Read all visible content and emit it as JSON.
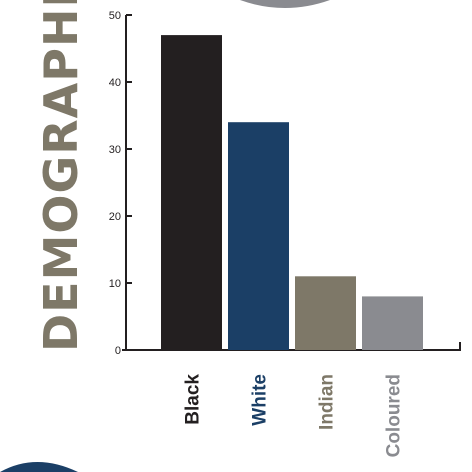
{
  "chart_data": {
    "type": "bar",
    "title": "DEMOGRAPHICS",
    "xlabel": "",
    "ylabel": "",
    "categories": [
      "Black",
      "White",
      "Indian",
      "Coloured"
    ],
    "values": [
      47,
      34,
      11,
      8
    ],
    "ylim": [
      0,
      50
    ],
    "yticks": [
      "0",
      "10",
      "20",
      "30",
      "40",
      "50"
    ],
    "grid": false,
    "legend": "none"
  },
  "colors": {
    "bars": [
      "#231f20",
      "#1b3f66",
      "#7e7868",
      "#8a8b90"
    ],
    "labels": [
      "#231f20",
      "#1b3f66",
      "#7e7868",
      "#8a8b90"
    ],
    "title": "#7e7868",
    "axis": "#231f20",
    "decor_top": "#8a8b90",
    "decor_bottom": "#1b3f66"
  }
}
